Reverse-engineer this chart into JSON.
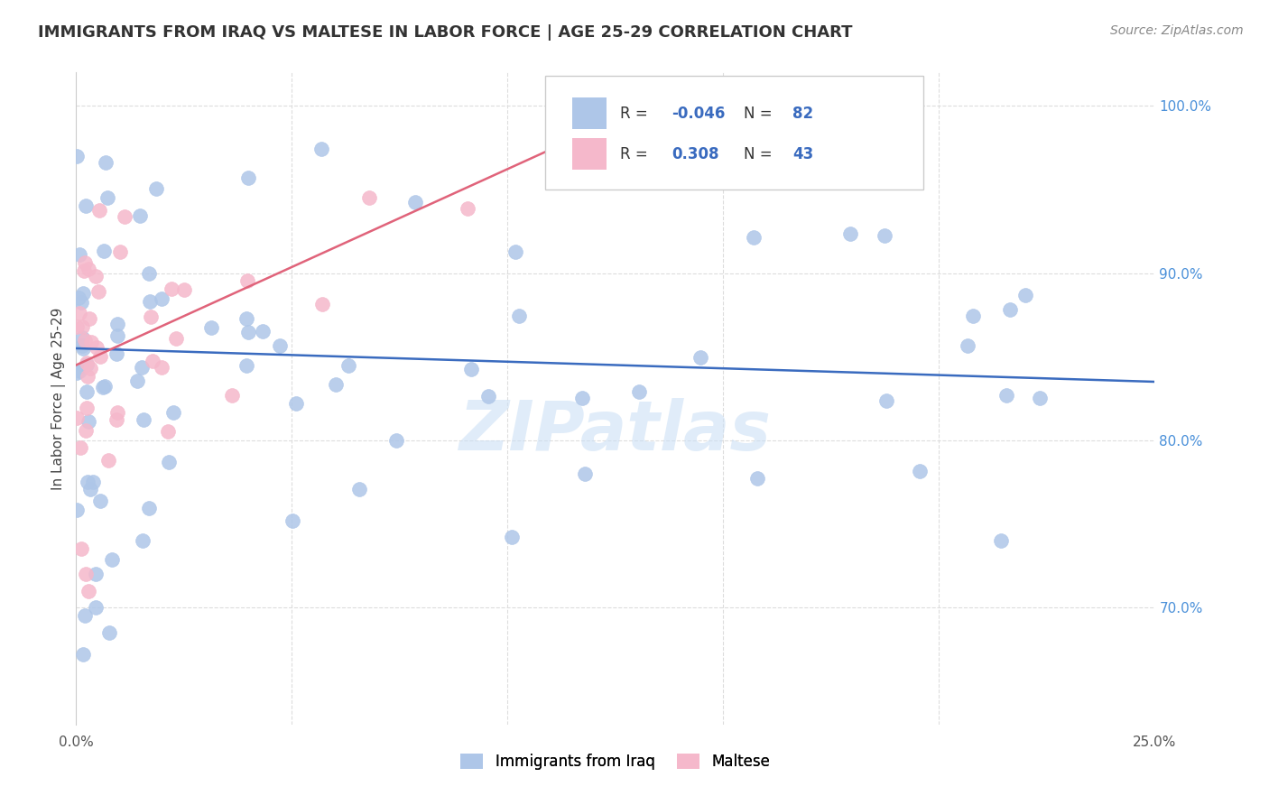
{
  "title": "IMMIGRANTS FROM IRAQ VS MALTESE IN LABOR FORCE | AGE 25-29 CORRELATION CHART",
  "source": "Source: ZipAtlas.com",
  "ylabel": "In Labor Force | Age 25-29",
  "xlim": [
    0.0,
    0.25
  ],
  "ylim": [
    0.63,
    1.02
  ],
  "xtick_positions": [
    0.0,
    0.05,
    0.1,
    0.15,
    0.2,
    0.25
  ],
  "xticklabels": [
    "0.0%",
    "",
    "",
    "",
    "",
    "25.0%"
  ],
  "ytick_positions": [
    0.7,
    0.8,
    0.9,
    1.0
  ],
  "ytick_labels": [
    "70.0%",
    "80.0%",
    "90.0%",
    "100.0%"
  ],
  "watermark": "ZIPatlas",
  "legend_R_iraq": "-0.046",
  "legend_N_iraq": "82",
  "legend_R_maltese": "0.308",
  "legend_N_maltese": "43",
  "iraq_color": "#aec6e8",
  "maltese_color": "#f5b8cb",
  "iraq_line_color": "#3a6bbf",
  "maltese_line_color": "#e0637a",
  "iraq_trend_x": [
    0.0,
    0.25
  ],
  "iraq_trend_y": [
    0.855,
    0.835
  ],
  "maltese_trend_x": [
    0.0,
    0.145
  ],
  "maltese_trend_y": [
    0.845,
    1.015
  ],
  "background_color": "#ffffff",
  "grid_color": "#dddddd",
  "ytick_color": "#4a90d9",
  "title_color": "#333333",
  "source_color": "#888888"
}
